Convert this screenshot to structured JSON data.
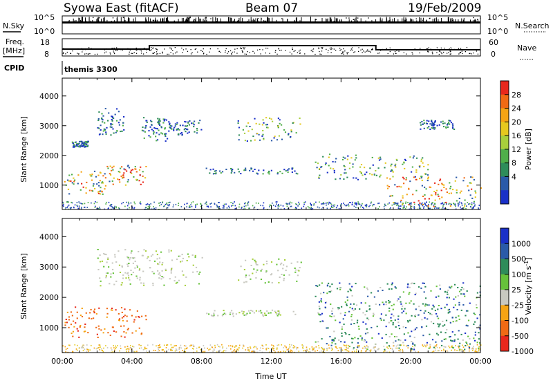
{
  "header": {
    "station": "Syowa East (fitACF)",
    "beam": "Beam 07",
    "date": "19/Feb/2009"
  },
  "strips": {
    "nsky_label": "N.Sky",
    "nsky_ticks": [
      "10^5",
      "10^0"
    ],
    "nsearch_label": "N.Search",
    "nsearch_ticks": [
      "10^5",
      "10^0"
    ],
    "freq_label": "Freq.",
    "freq_unit": "[MHz]",
    "freq_ticks": [
      "18",
      "8"
    ],
    "nave_label": "Nave",
    "nave_ticks": [
      "60",
      "0"
    ],
    "cpid_label": "CPID",
    "cpid_value": "themis 3300"
  },
  "chart_data": [
    {
      "type": "heatmap",
      "name": "power",
      "xlabel": "",
      "ylabel": "Slant Range [km]",
      "xlim": [
        0,
        24
      ],
      "ylim": [
        180,
        4600
      ],
      "yticks": [
        1000,
        2000,
        3000,
        4000
      ],
      "xticks": [
        "00:00",
        "04:00",
        "08:00",
        "12:00",
        "16:00",
        "20:00",
        "00:00"
      ],
      "colorbar": {
        "label": "Power [dB]",
        "ticks": [
          "28",
          "24",
          "20",
          "16",
          "12",
          "8",
          "4"
        ],
        "colors": [
          "#e8281c",
          "#f06a14",
          "#f5a414",
          "#e6c81e",
          "#a8cf3c",
          "#4fae4a",
          "#2e8c5a",
          "#2a5aa8",
          "#1a30c8"
        ]
      },
      "echo_regions": [
        {
          "t": [
            0.1,
            2.5
          ],
          "r": [
            700,
            1500
          ],
          "level": "strong"
        },
        {
          "t": [
            2.5,
            4.8
          ],
          "r": [
            1000,
            1700
          ],
          "level": "strong"
        },
        {
          "t": [
            0.5,
            1.5
          ],
          "r": [
            2300,
            2500
          ],
          "level": "weak"
        },
        {
          "t": [
            2.0,
            3.5
          ],
          "r": [
            2700,
            3600
          ],
          "level": "weak"
        },
        {
          "t": [
            4.5,
            6.0
          ],
          "r": [
            2500,
            3300
          ],
          "level": "weak"
        },
        {
          "t": [
            6.0,
            8.0
          ],
          "r": [
            2700,
            3200
          ],
          "level": "weak"
        },
        {
          "t": [
            8.2,
            13.5
          ],
          "r": [
            1400,
            1600
          ],
          "level": "weak"
        },
        {
          "t": [
            10.0,
            13.7
          ],
          "r": [
            2500,
            3300
          ],
          "level": "medium"
        },
        {
          "t": [
            14.5,
            17.5
          ],
          "r": [
            1200,
            2100
          ],
          "level": "medium"
        },
        {
          "t": [
            17.5,
            21.0
          ],
          "r": [
            1300,
            2000
          ],
          "level": "medium"
        },
        {
          "t": [
            18.5,
            24.0
          ],
          "r": [
            300,
            1300
          ],
          "level": "strong"
        },
        {
          "t": [
            20.5,
            22.5
          ],
          "r": [
            2900,
            3200
          ],
          "level": "weak"
        }
      ]
    },
    {
      "type": "heatmap",
      "name": "velocity",
      "xlabel": "Time UT",
      "ylabel": "Slant Range [km]",
      "xlim": [
        0,
        24
      ],
      "ylim": [
        180,
        4600
      ],
      "yticks": [
        1000,
        2000,
        3000,
        4000
      ],
      "xticks": [
        "00:00",
        "04:00",
        "08:00",
        "12:00",
        "16:00",
        "20:00",
        "00:00"
      ],
      "colorbar": {
        "label": "Velocity [m s^-1]",
        "ticks": [
          "1000",
          "500",
          "100",
          "25",
          "-25",
          "-100",
          "-500",
          "-1000"
        ],
        "colors": [
          "#1a30c8",
          "#2a5aa8",
          "#2e8c5a",
          "#66c23a",
          "#c8c8c0",
          "#f5a414",
          "#f06a14",
          "#e8281c"
        ]
      },
      "echo_regions": [
        {
          "t": [
            0.1,
            4.8
          ],
          "r": [
            700,
            1700
          ],
          "level": "negative"
        },
        {
          "t": [
            2.0,
            8.0
          ],
          "r": [
            2400,
            3600
          ],
          "level": "zero"
        },
        {
          "t": [
            8.2,
            13.5
          ],
          "r": [
            1400,
            1600
          ],
          "level": "zero"
        },
        {
          "t": [
            10.0,
            13.7
          ],
          "r": [
            2500,
            3300
          ],
          "level": "zero"
        },
        {
          "t": [
            14.5,
            24.0
          ],
          "r": [
            300,
            2500
          ],
          "level": "positive"
        }
      ]
    }
  ]
}
